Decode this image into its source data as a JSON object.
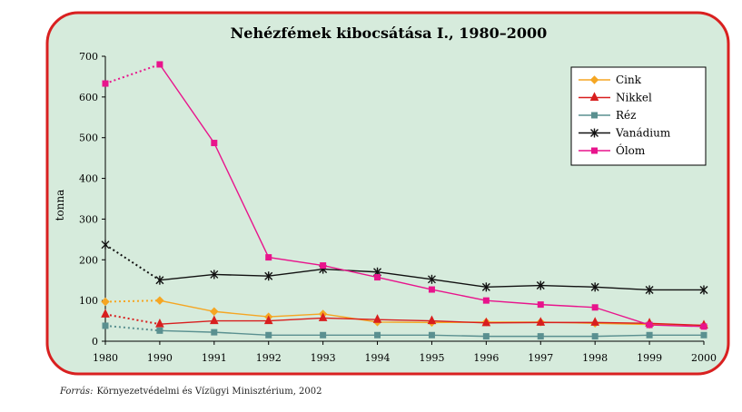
{
  "chart_data": {
    "type": "line",
    "title": "Nehézfémek kibocsátása I., 1980–2000",
    "ylabel": "tonna",
    "xlabel": "",
    "ylim": [
      0,
      700
    ],
    "yticks": [
      0,
      100,
      200,
      300,
      400,
      500,
      600,
      700
    ],
    "categories": [
      "1980",
      "1990",
      "1991",
      "1992",
      "1993",
      "1994",
      "1995",
      "1996",
      "1997",
      "1998",
      "1999",
      "2000"
    ],
    "legend_position": "top-right",
    "grid": false,
    "note": "The 1980–1990 segment of each series is drawn dotted.",
    "series": [
      {
        "name": "Cink",
        "color": "#f5a623",
        "marker": "diamond",
        "values": [
          97,
          100,
          73,
          60,
          67,
          47,
          46,
          47,
          47,
          44,
          41,
          38
        ]
      },
      {
        "name": "Nikkel",
        "color": "#d81e1e",
        "marker": "triangle",
        "values": [
          66,
          42,
          50,
          50,
          57,
          53,
          50,
          45,
          46,
          46,
          44,
          39
        ]
      },
      {
        "name": "Réz",
        "color": "#5a9090",
        "marker": "square",
        "values": [
          38,
          26,
          22,
          15,
          15,
          15,
          15,
          12,
          12,
          12,
          15,
          15
        ]
      },
      {
        "name": "Vanádium",
        "color": "#111111",
        "marker": "star",
        "values": [
          237,
          150,
          164,
          160,
          177,
          170,
          152,
          133,
          137,
          133,
          126,
          126
        ]
      },
      {
        "name": "Ólom",
        "color": "#e8148c",
        "marker": "square",
        "values": [
          633,
          680,
          487,
          206,
          186,
          157,
          127,
          100,
          90,
          83,
          40,
          36
        ]
      }
    ]
  },
  "source": {
    "label": "Forrás:",
    "text": "Környezetvédelmi és Vízügyi Minisztérium, 2002"
  }
}
